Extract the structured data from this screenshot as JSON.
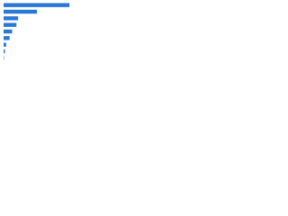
{
  "chart_data": {
    "type": "hbar",
    "categories": [
      null,
      null,
      null,
      null,
      null,
      null,
      null,
      null,
      null
    ],
    "values": [
      77,
      39,
      17,
      15,
      10,
      7,
      3,
      1.5,
      0.5
    ],
    "color": "#2a78d6",
    "xlim": [
      0,
      100
    ]
  }
}
